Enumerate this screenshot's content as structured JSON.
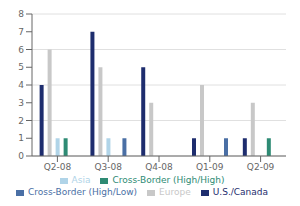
{
  "chart_data": {
    "type": "bar",
    "categories": [
      "Q2-08",
      "Q3-08",
      "Q4-08",
      "Q1-09",
      "Q2-09"
    ],
    "series": [
      {
        "name": "U.S./Canada",
        "color": "#1e2d6e",
        "values": [
          4,
          7,
          5,
          1,
          1
        ]
      },
      {
        "name": "Europe",
        "color": "#c8c8c8",
        "values": [
          6,
          5,
          3,
          4,
          3
        ]
      },
      {
        "name": "Asia",
        "color": "#b0d4e8",
        "values": [
          1,
          1,
          0,
          0,
          0
        ]
      },
      {
        "name": "Cross-Border (High/High)",
        "color": "#2e8b74",
        "values": [
          1,
          0,
          0,
          0,
          1
        ]
      },
      {
        "name": "Cross-Border (High/Low)",
        "color": "#4a6fa5",
        "values": [
          0,
          1,
          0,
          1,
          0
        ]
      }
    ],
    "ylim": [
      0,
      8
    ],
    "yticks": [
      0,
      1,
      2,
      3,
      4,
      5,
      6,
      7,
      8
    ],
    "grid": true,
    "legend": "bottom"
  }
}
